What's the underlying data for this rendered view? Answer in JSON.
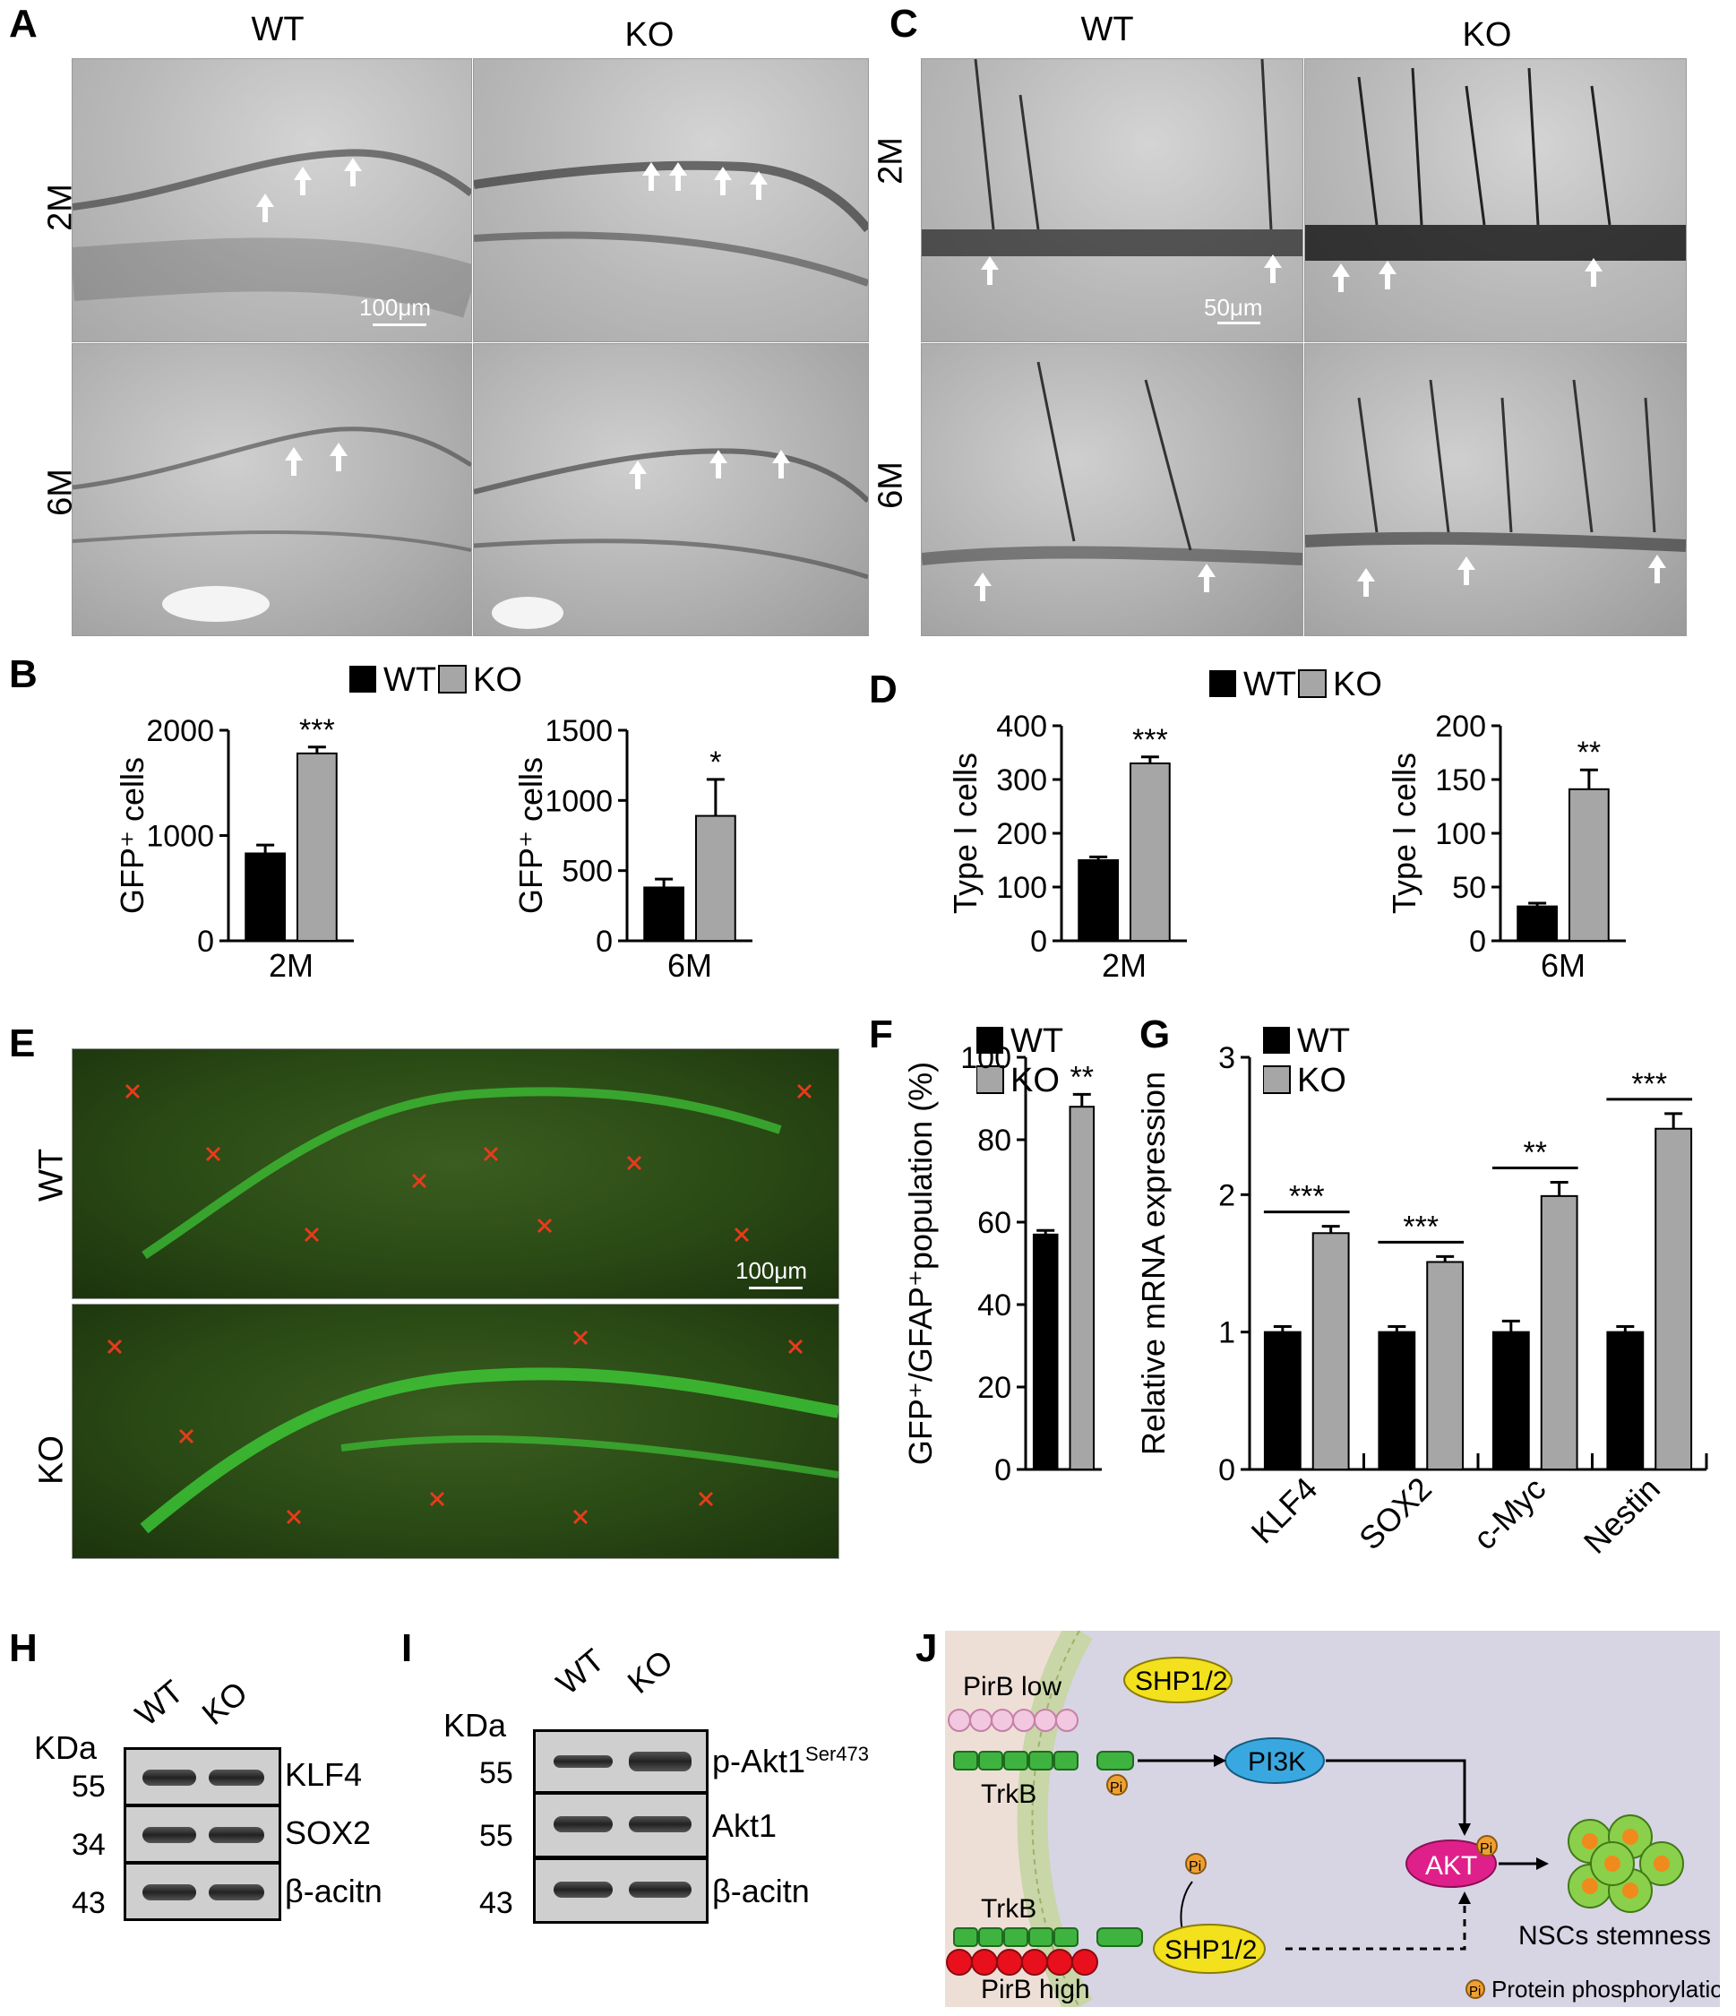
{
  "panels": {
    "A": {
      "letter": "A",
      "cols": [
        "WT",
        "KO"
      ],
      "rows": [
        "2M",
        "6M"
      ],
      "scale": "100μm"
    },
    "B": {
      "letter": "B"
    },
    "C": {
      "letter": "C",
      "cols": [
        "WT",
        "KO"
      ],
      "rows": [
        "2M",
        "6M"
      ],
      "scale": "50μm"
    },
    "D": {
      "letter": "D"
    },
    "E": {
      "letter": "E",
      "rows": [
        "WT",
        "KO"
      ],
      "scale": "100μm"
    },
    "F": {
      "letter": "F"
    },
    "G": {
      "letter": "G"
    },
    "H": {
      "letter": "H",
      "kda": "KDa",
      "cols": [
        "WT",
        "KO"
      ],
      "markers": [
        "55",
        "34",
        "43"
      ],
      "bands": [
        "KLF4",
        "SOX2",
        "β-acitn"
      ]
    },
    "I": {
      "letter": "I",
      "kda": "KDa",
      "cols": [
        "WT",
        "KO"
      ],
      "markers": [
        "55",
        "55",
        "43"
      ],
      "bands": [
        "p-Akt1",
        "Akt1",
        "β-acitn"
      ],
      "superscript": "Ser473"
    },
    "J": {
      "letter": "J",
      "pirb_low": "PirB low",
      "pirb_high": "PirB high",
      "trkb": "TrkB",
      "shp": "SHP1/2",
      "pi3k": "PI3K",
      "akt": "AKT",
      "pi": "Pi",
      "outcome": "NSCs stemness",
      "legend": "Protein phosphorylation"
    }
  },
  "legend": {
    "wt": "WT",
    "ko": "KO"
  },
  "colors": {
    "wt": "#000000",
    "ko": "#a6a6a6",
    "fluo_red": "#e83a1c",
    "fluo_green": "#3fd43a",
    "j_bg": "#d7d4e4",
    "j_left": "#eedfd6"
  },
  "chart_data": [
    {
      "type": "bar",
      "panel": "B",
      "categories": [
        "2M"
      ],
      "ylabel": "GFP⁺ cells",
      "ylim": [
        0,
        2000
      ],
      "yticks": [
        "0",
        "1000",
        "2000"
      ],
      "series": [
        {
          "name": "WT",
          "values": [
            830
          ],
          "errors": [
            80
          ]
        },
        {
          "name": "KO",
          "values": [
            1780
          ],
          "errors": [
            60
          ]
        }
      ],
      "significance": [
        "***"
      ]
    },
    {
      "type": "bar",
      "panel": "B",
      "categories": [
        "6M"
      ],
      "ylabel": "GFP⁺ cells",
      "ylim": [
        0,
        1500
      ],
      "yticks": [
        "0",
        "500",
        "1000",
        "1500"
      ],
      "series": [
        {
          "name": "WT",
          "values": [
            380
          ],
          "errors": [
            60
          ]
        },
        {
          "name": "KO",
          "values": [
            890
          ],
          "errors": [
            260
          ]
        }
      ],
      "significance": [
        "*"
      ]
    },
    {
      "type": "bar",
      "panel": "D",
      "categories": [
        "2M"
      ],
      "ylabel": "Type I cells",
      "ylim": [
        0,
        400
      ],
      "yticks": [
        "0",
        "100",
        "200",
        "300",
        "400"
      ],
      "series": [
        {
          "name": "WT",
          "values": [
            150
          ],
          "errors": [
            6
          ]
        },
        {
          "name": "KO",
          "values": [
            330
          ],
          "errors": [
            12
          ]
        }
      ],
      "significance": [
        "***"
      ]
    },
    {
      "type": "bar",
      "panel": "D",
      "categories": [
        "6M"
      ],
      "ylabel": "Type I cells",
      "ylim": [
        0,
        200
      ],
      "yticks": [
        "0",
        "50",
        "100",
        "150",
        "200"
      ],
      "series": [
        {
          "name": "WT",
          "values": [
            32
          ],
          "errors": [
            3
          ]
        },
        {
          "name": "KO",
          "values": [
            141
          ],
          "errors": [
            18
          ]
        }
      ],
      "significance": [
        "**"
      ]
    },
    {
      "type": "bar",
      "panel": "F",
      "categories": [
        ""
      ],
      "ylabel": "GFP⁺/GFAP⁺population (%)",
      "ylim": [
        0,
        100
      ],
      "yticks": [
        "0",
        "20",
        "40",
        "60",
        "80",
        "100"
      ],
      "series": [
        {
          "name": "WT",
          "values": [
            57
          ],
          "errors": [
            1
          ]
        },
        {
          "name": "KO",
          "values": [
            88
          ],
          "errors": [
            3
          ]
        }
      ],
      "significance": [
        "**"
      ]
    },
    {
      "type": "bar",
      "panel": "G",
      "categories": [
        "KLF4",
        "SOX2",
        "c-Myc",
        "Nestin"
      ],
      "ylabel": "Relative mRNA expression",
      "ylim": [
        0,
        3
      ],
      "yticks": [
        "0",
        "1",
        "2",
        "3"
      ],
      "series": [
        {
          "name": "WT",
          "values": [
            1.0,
            1.0,
            1.0,
            1.0
          ],
          "errors": [
            0.04,
            0.04,
            0.08,
            0.04
          ]
        },
        {
          "name": "KO",
          "values": [
            1.72,
            1.51,
            1.99,
            2.48
          ],
          "errors": [
            0.05,
            0.04,
            0.1,
            0.11
          ]
        }
      ],
      "significance": [
        "***",
        "***",
        "**",
        "***"
      ]
    }
  ]
}
